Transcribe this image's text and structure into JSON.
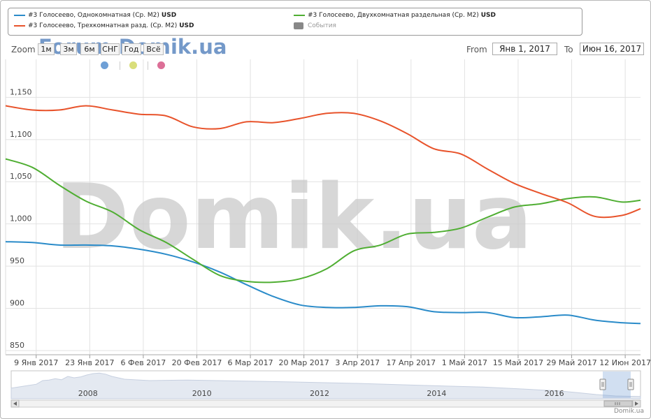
{
  "legend": {
    "items": [
      {
        "label": "#3 Голосеево, Однокомнатная (Ср. М2)",
        "unit": "USD",
        "color": "#2a8bc9"
      },
      {
        "label": "#3 Голосеево, Двухкомнатная раздельная (Ср. М2)",
        "unit": "USD",
        "color": "#4fae32"
      },
      {
        "label": "#3 Голосеево, Трехкомнатная разд. (Ср. М2)",
        "unit": "USD",
        "color": "#e8532b"
      },
      {
        "label": "События",
        "color": "#888888"
      }
    ]
  },
  "zoom": {
    "label": "Zoom",
    "buttons": [
      "1м",
      "3м",
      "6м",
      "СНГ",
      "Год",
      "Всё"
    ]
  },
  "watermark": {
    "top": "Forum.Domik.ua",
    "center": "Domik.ua"
  },
  "range": {
    "from_label": "From",
    "from_value": "Янв 1, 2017",
    "to_label": "To",
    "to_value": "Июн 16, 2017"
  },
  "event_dots": [
    {
      "color": "#6fa0d6"
    },
    {
      "color": "#d9de7a"
    },
    {
      "color": "#dc6f97"
    }
  ],
  "footer": "Domik.ua",
  "chart_data": {
    "type": "line",
    "y_ticks": [
      "850",
      "900",
      "950",
      "1,000",
      "1,050",
      "1,100",
      "1,150"
    ],
    "ylim": [
      845,
      1195
    ],
    "x_ticks": [
      "9 Янв 2017",
      "23 Янв 2017",
      "6 Фев 2017",
      "20 Фев 2017",
      "6 Мар 2017",
      "20 Мар 2017",
      "3 Апр 2017",
      "17 Апр 2017",
      "1 Май 2017",
      "15 Май 2017",
      "29 Май 2017",
      "12 Июн 2017"
    ],
    "x_tick_days": [
      8,
      22,
      36,
      50,
      64,
      78,
      92,
      106,
      120,
      134,
      148,
      162
    ],
    "xlim_days": [
      0,
      166
    ],
    "series": [
      {
        "name": "#3 Голосеево, Однокомнатная (Ср. М2)",
        "color": "#2a8bc9",
        "points": [
          [
            0,
            979
          ],
          [
            7,
            978
          ],
          [
            14,
            975
          ],
          [
            21,
            975
          ],
          [
            28,
            974
          ],
          [
            35,
            970
          ],
          [
            42,
            964
          ],
          [
            49,
            955
          ],
          [
            56,
            943
          ],
          [
            63,
            928
          ],
          [
            70,
            914
          ],
          [
            77,
            904
          ],
          [
            84,
            901
          ],
          [
            91,
            901
          ],
          [
            98,
            903
          ],
          [
            105,
            902
          ],
          [
            112,
            896
          ],
          [
            119,
            895
          ],
          [
            126,
            895
          ],
          [
            133,
            889
          ],
          [
            140,
            890
          ],
          [
            147,
            892
          ],
          [
            154,
            886
          ],
          [
            161,
            883
          ],
          [
            166,
            882
          ]
        ]
      },
      {
        "name": "#3 Голосеево, Двухкомнатная раздельная (Ср. М2)",
        "color": "#4fae32",
        "points": [
          [
            0,
            1077
          ],
          [
            7,
            1067
          ],
          [
            14,
            1046
          ],
          [
            21,
            1027
          ],
          [
            28,
            1014
          ],
          [
            35,
            993
          ],
          [
            42,
            978
          ],
          [
            49,
            958
          ],
          [
            56,
            939
          ],
          [
            63,
            932
          ],
          [
            70,
            931
          ],
          [
            77,
            935
          ],
          [
            84,
            947
          ],
          [
            91,
            968
          ],
          [
            98,
            975
          ],
          [
            105,
            988
          ],
          [
            112,
            990
          ],
          [
            119,
            995
          ],
          [
            126,
            1008
          ],
          [
            133,
            1020
          ],
          [
            140,
            1024
          ],
          [
            147,
            1030
          ],
          [
            154,
            1032
          ],
          [
            161,
            1026
          ],
          [
            166,
            1028
          ]
        ]
      },
      {
        "name": "#3 Голосеево, Трехкомнатная разд. (Ср. М2)",
        "color": "#e8532b",
        "points": [
          [
            0,
            1140
          ],
          [
            7,
            1135
          ],
          [
            14,
            1135
          ],
          [
            21,
            1140
          ],
          [
            28,
            1135
          ],
          [
            35,
            1130
          ],
          [
            42,
            1128
          ],
          [
            49,
            1115
          ],
          [
            56,
            1113
          ],
          [
            63,
            1121
          ],
          [
            70,
            1120
          ],
          [
            77,
            1125
          ],
          [
            84,
            1131
          ],
          [
            91,
            1131
          ],
          [
            98,
            1122
          ],
          [
            105,
            1107
          ],
          [
            112,
            1089
          ],
          [
            119,
            1083
          ],
          [
            126,
            1065
          ],
          [
            133,
            1048
          ],
          [
            140,
            1036
          ],
          [
            147,
            1025
          ],
          [
            154,
            1009
          ],
          [
            161,
            1010
          ],
          [
            166,
            1018
          ]
        ]
      }
    ],
    "navigator": {
      "year_labels": [
        "2008",
        "2010",
        "2012",
        "2014",
        "2016"
      ]
    }
  }
}
